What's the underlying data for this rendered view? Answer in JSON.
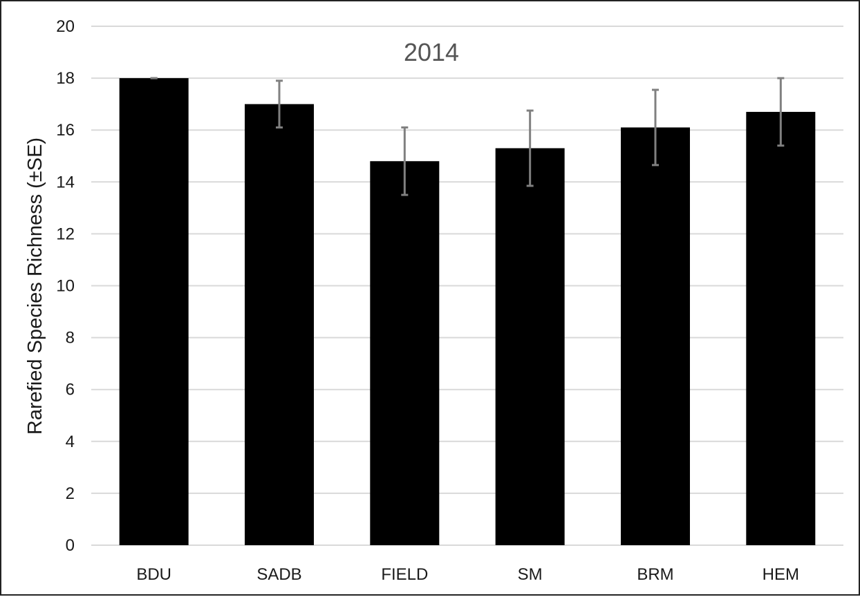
{
  "chart_data": {
    "type": "bar",
    "title": "2014",
    "xlabel": "",
    "ylabel": "Rarefied Species Richness (±SE)",
    "categories": [
      "BDU",
      "SADB",
      "FIELD",
      "SM",
      "BRM",
      "HEM"
    ],
    "values": [
      18.0,
      17.0,
      14.8,
      15.3,
      16.1,
      16.7
    ],
    "errors": [
      0.0,
      0.9,
      1.3,
      1.45,
      1.45,
      1.3
    ],
    "ylim": [
      0,
      20
    ],
    "yticks": [
      "0",
      "2",
      "4",
      "6",
      "8",
      "10",
      "12",
      "14",
      "16",
      "18",
      "20"
    ],
    "grid": true,
    "legend": "none",
    "colors": {
      "bar": "#000000",
      "error_bar": "#808080",
      "grid": "#d9d9d9"
    }
  }
}
